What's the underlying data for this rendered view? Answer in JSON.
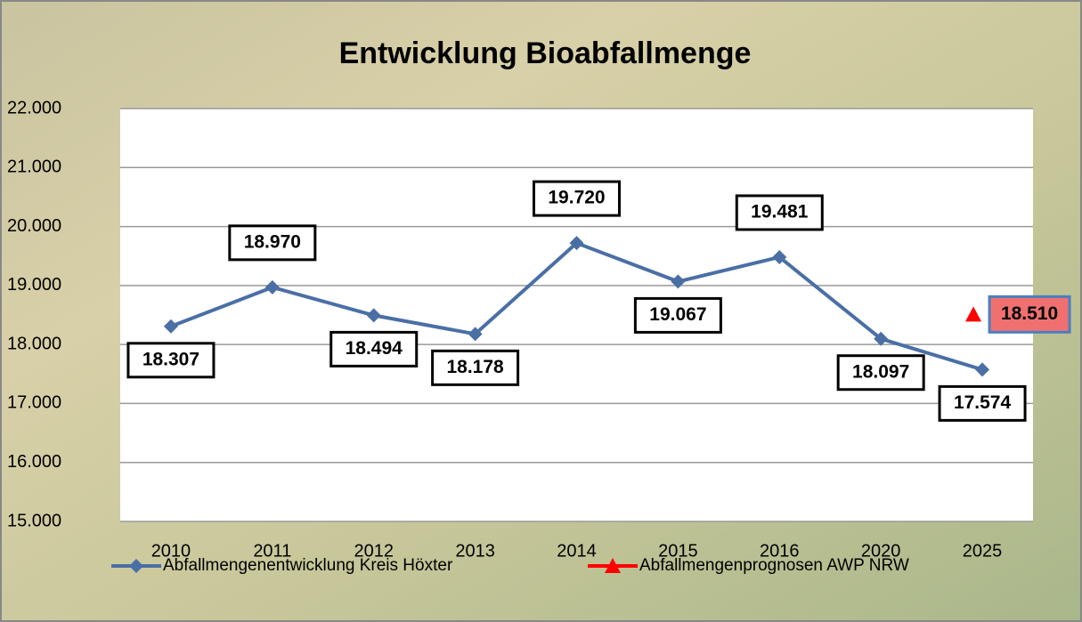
{
  "chart_data": {
    "type": "line",
    "title": "Entwicklung Bioabfallmenge",
    "categories": [
      "2010",
      "2011",
      "2012",
      "2013",
      "2014",
      "2015",
      "2016",
      "2020",
      "2025"
    ],
    "series": [
      {
        "name": "Abfallmengenentwicklung Kreis Höxter",
        "color": "#4a6fa5",
        "marker": "diamond",
        "values": [
          18307,
          18970,
          18494,
          18178,
          19720,
          19067,
          19481,
          18097,
          17574
        ],
        "value_labels": [
          "18.307",
          "18.970",
          "18.494",
          "18.178",
          "19.720",
          "19.067",
          "19.481",
          "18.097",
          "17.574"
        ]
      },
      {
        "name": "Abfallmengenprognosen AWP NRW",
        "color": "#ff0000",
        "marker": "triangle",
        "values": [
          null,
          null,
          null,
          null,
          null,
          null,
          null,
          null,
          18510
        ],
        "value_labels": [
          null,
          null,
          null,
          null,
          null,
          null,
          null,
          null,
          "18.510"
        ]
      }
    ],
    "ylim": [
      15000,
      22000
    ],
    "yticks": [
      {
        "value": 15000,
        "label": "15.000"
      },
      {
        "value": 16000,
        "label": "16.000"
      },
      {
        "value": 17000,
        "label": "17.000"
      },
      {
        "value": 18000,
        "label": "18.000"
      },
      {
        "value": 19000,
        "label": "19.000"
      },
      {
        "value": 20000,
        "label": "20.000"
      },
      {
        "value": 21000,
        "label": "21.000"
      },
      {
        "value": 22000,
        "label": "22.000"
      }
    ],
    "grid": true,
    "legend": "bottom"
  }
}
